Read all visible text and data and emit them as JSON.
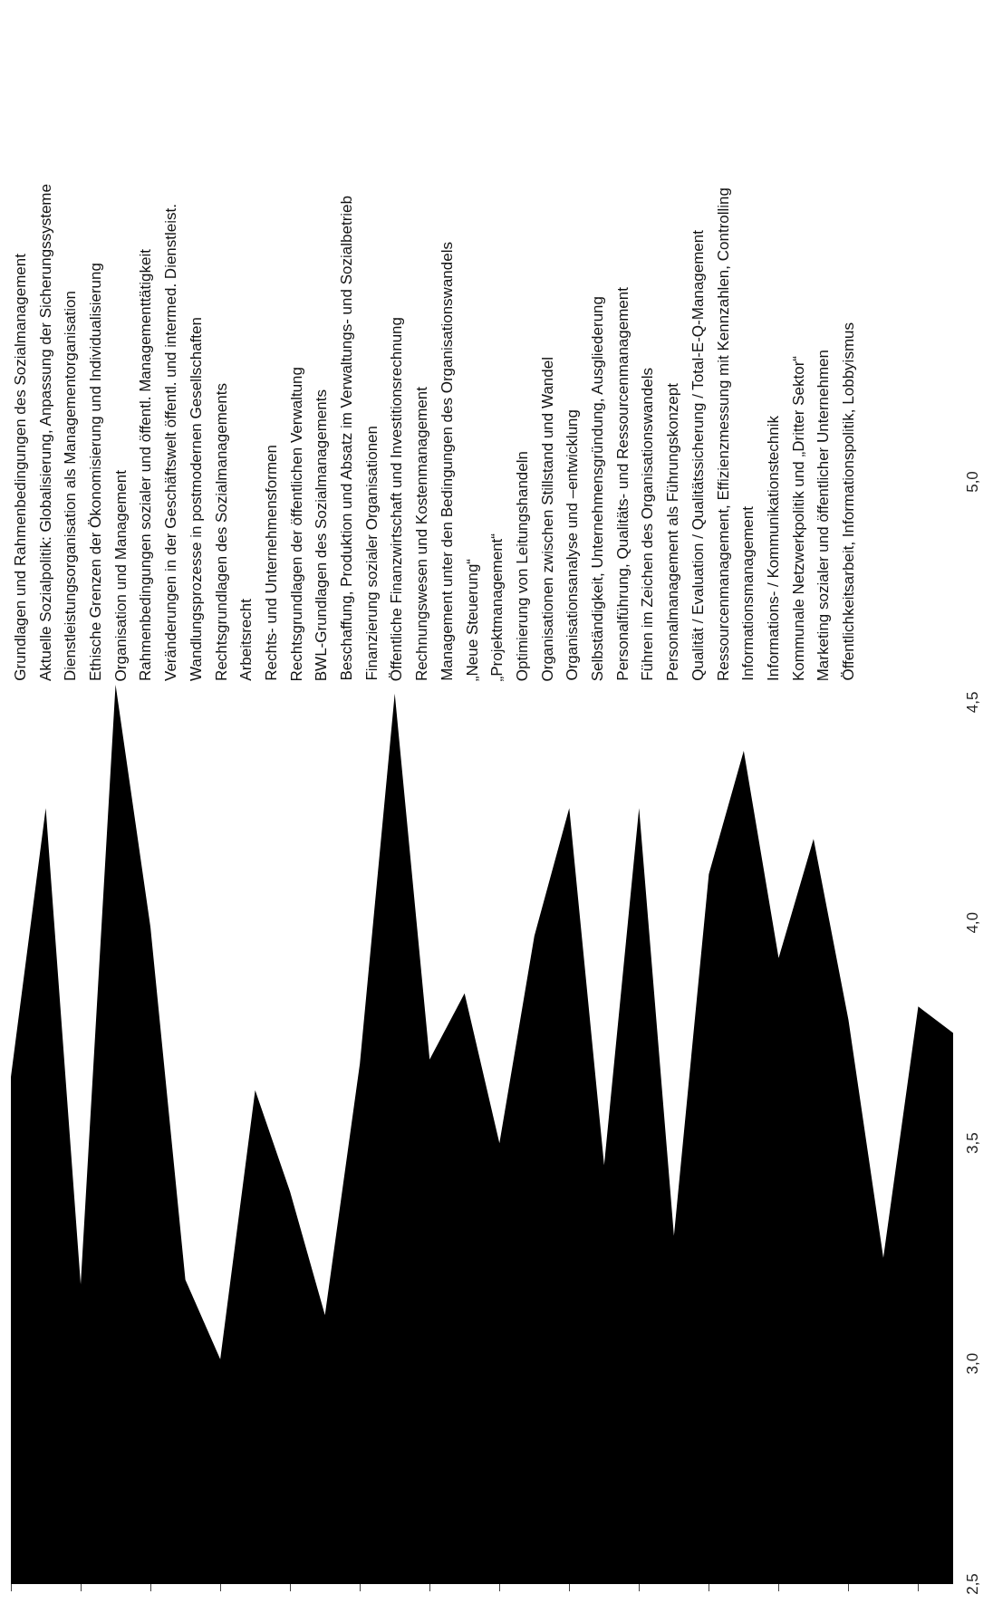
{
  "chart_data": {
    "type": "area",
    "categories": [
      null,
      null,
      null,
      null,
      null,
      null,
      null,
      null,
      null,
      null,
      null,
      null,
      null,
      null,
      null,
      null,
      null,
      null,
      null,
      null,
      null,
      null,
      null,
      null,
      null,
      null,
      null,
      null
    ],
    "values": [
      3.65,
      4.26,
      3.18,
      4.54,
      3.99,
      3.19,
      3.01,
      3.62,
      3.39,
      3.11,
      3.68,
      4.52,
      3.69,
      3.84,
      3.5,
      3.97,
      4.26,
      3.45,
      4.26,
      3.29,
      4.11,
      4.39,
      3.92,
      4.19,
      3.78,
      3.24,
      3.81,
      3.75
    ],
    "color": "#000000",
    "ylim": [
      2.5,
      5.0
    ],
    "yticks": [
      {
        "value": 2.5,
        "label": "2,5"
      },
      {
        "value": 3.0,
        "label": "3,0"
      },
      {
        "value": 3.5,
        "label": "3,5"
      },
      {
        "value": 4.0,
        "label": "4,0"
      },
      {
        "value": 4.5,
        "label": "4,5"
      },
      {
        "value": 5.0,
        "label": "5,0"
      }
    ],
    "tick_labels": "y",
    "annotations": [
      "Grundlagen und Rahmenbedingungen des Sozialmanagement",
      "Aktuelle Sozialpolitik: Globalisierung, Anpassung der Sicherungssysteme",
      "Dienstleistungsorganisation als Managementorganisation",
      "Ethische Grenzen der Ökonomisierung und Individualisierung",
      "Organisation und Management",
      "Rahmenbedingungen sozialer und öffentl. Managementtätigkeit",
      "Veränderungen in der Geschäftswelt öffentl. und intermed. Dienstleist.",
      "Wandlungsprozesse in postmodernen Gesellschaften",
      "Rechtsgrundlagen des Sozialmanagements",
      "Arbeitsrecht",
      "Rechts- und Unternehmensformen",
      "Rechtsgrundlagen der öffentlichen Verwaltung",
      "BWL-Grundlagen des Sozialmanagements",
      "Beschaffung, Produktion und Absatz im Verwaltungs- und Sozialbetrieb",
      "Finanzierung sozialer Organisationen",
      "Öffentliche Finanzwirtschaft und Investitionsrechnung",
      "Rechnungswesen und Kostenmanagement",
      "Management unter den Bedingungen des Organisationswandels",
      "„Neue Steuerung“",
      "„Projektmanagement“",
      "Optimierung von Leitungshandeln",
      "Organisationen zwischen Stillstand und Wandel",
      "Organisationsanalyse und –entwicklung",
      "Selbständigkeit, Unternehmensgründung, Ausgliederung",
      "Personalführung, Qualitäts- und Ressourcenmanagement",
      "Führen im Zeichen des Organisationswandels",
      "Personalmanagement als Führungskonzept",
      "Qualität / Evaluation / Qualitätssicherung / Total-E-Q-Management",
      "Ressourcenmanagement, Effizienzmessung mit Kennzahlen, Controlling",
      "Informationsmanagement",
      "Informations- / Kommunikationstechnik",
      "Kommunale Netzwerkpolitik und „Dritter Sektor“",
      "Marketing sozialer und öffentlicher Unternehmen",
      "Öffentlichkeitsarbeit, Informationspolitik, Lobbyismus"
    ]
  }
}
